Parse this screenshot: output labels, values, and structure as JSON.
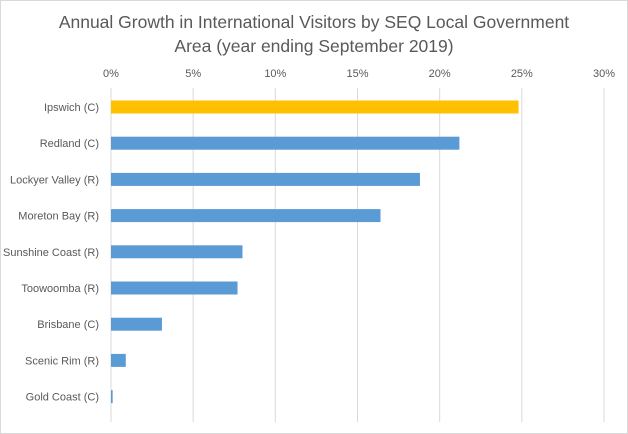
{
  "chart_data": {
    "type": "bar",
    "orientation": "horizontal",
    "title_lines": [
      "Annual Growth in International Visitors by SEQ Local Government",
      "Area (year ending September 2019)"
    ],
    "categories": [
      "Ipswich (C)",
      "Redland (C)",
      "Lockyer Valley (R)",
      "Moreton Bay (R)",
      "Sunshine Coast (R)",
      "Toowoomba (R)",
      "Brisbane (C)",
      "Scenic Rim (R)",
      "Gold Coast (C)"
    ],
    "values": [
      24.8,
      21.2,
      18.8,
      16.4,
      8.0,
      7.7,
      3.1,
      0.9,
      0.1
    ],
    "unit": "%",
    "xlim": [
      0,
      30
    ],
    "xticks": [
      "0%",
      "5%",
      "10%",
      "15%",
      "20%",
      "25%",
      "30%"
    ],
    "tick_values": [
      0,
      5,
      10,
      15,
      20,
      25,
      30
    ],
    "grid": true,
    "legend": "none",
    "colors": {
      "highlight": "#FFC000",
      "default": "#5B9BD5",
      "grid": "#d9d9d9",
      "text": "#595959"
    },
    "highlight_index": 0
  }
}
